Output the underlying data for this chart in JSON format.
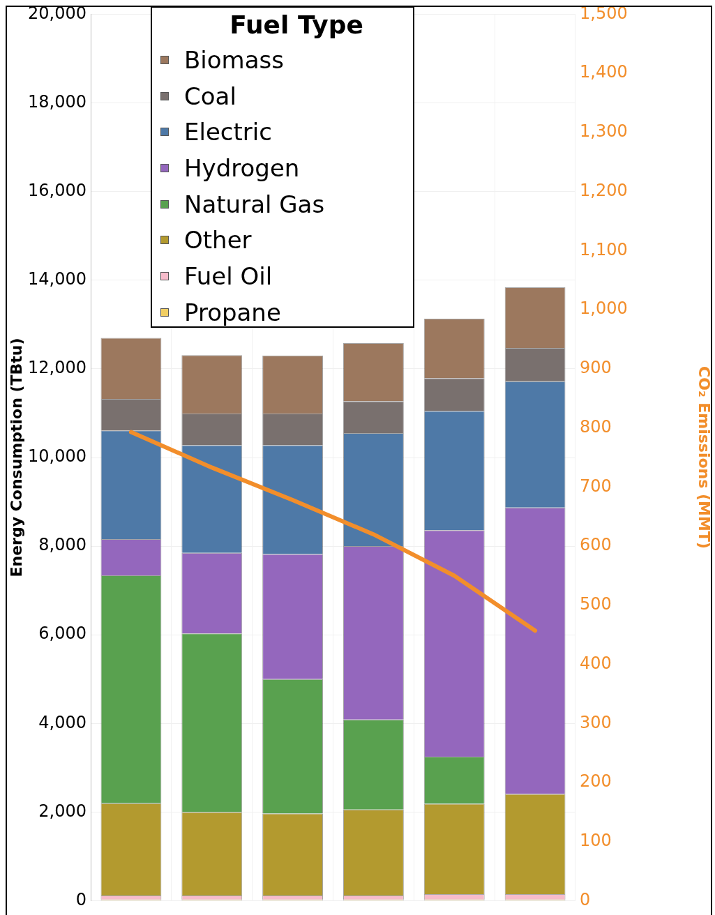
{
  "chart_data": {
    "type": "bar",
    "stacked": true,
    "legend_title": "Fuel Type",
    "legend": "top left",
    "grid": true,
    "ylabel": "Energy Consumption (TBtu)",
    "y2label": "CO₂ Emissions (MMT)",
    "categories": [
      null,
      null,
      null,
      null,
      null,
      null
    ],
    "ylim": [
      0,
      20000
    ],
    "yticks": [
      0,
      {
        "value": 2000,
        "label": "2,000"
      },
      {
        "value": 4000,
        "label": "4,000"
      },
      {
        "value": 6000,
        "label": "6,000"
      },
      {
        "value": 8000,
        "label": "8,000"
      },
      {
        "value": 10000,
        "label": "10,000"
      },
      {
        "value": 12000,
        "label": "12,000"
      },
      {
        "value": 14000,
        "label": "14,000"
      },
      {
        "value": 16000,
        "label": "16,000"
      },
      {
        "value": 18000,
        "label": "18,000"
      },
      {
        "value": 20000,
        "label": "20,000"
      }
    ],
    "y2lim": [
      0,
      1500
    ],
    "y2ticks": [
      0,
      100,
      200,
      300,
      400,
      500,
      600,
      700,
      800,
      900,
      {
        "value": 1000,
        "label": "1,000"
      },
      {
        "value": 1100,
        "label": "1,100"
      },
      {
        "value": 1200,
        "label": "1,200"
      },
      {
        "value": 1300,
        "label": "1,300"
      },
      {
        "value": 1400,
        "label": "1,400"
      },
      {
        "value": 1500,
        "label": "1,500"
      }
    ],
    "series": [
      {
        "name": "Propane",
        "color": "#f1ce63",
        "values": [
          30,
          30,
          30,
          30,
          30,
          30
        ]
      },
      {
        "name": "Fuel Oil",
        "color": "#f7bccb",
        "values": [
          90,
          90,
          90,
          90,
          120,
          120
        ]
      },
      {
        "name": "Other",
        "color": "#b39a2f",
        "values": [
          2080,
          1880,
          1850,
          1940,
          2040,
          2260
        ]
      },
      {
        "name": "Natural Gas",
        "color": "#59a14f",
        "values": [
          5140,
          4030,
          3030,
          2030,
          1060,
          0
        ]
      },
      {
        "name": "Hydrogen",
        "color": "#9467bd",
        "values": [
          820,
          1820,
          2820,
          3910,
          5110,
          6460
        ]
      },
      {
        "name": "Electric",
        "color": "#4e79a7",
        "values": [
          2450,
          2430,
          2460,
          2550,
          2690,
          2850
        ]
      },
      {
        "name": "Coal",
        "color": "#79706e",
        "values": [
          710,
          710,
          710,
          720,
          740,
          750
        ]
      },
      {
        "name": "Biomass",
        "color": "#9c785e",
        "values": [
          1380,
          1320,
          1310,
          1310,
          1340,
          1370
        ]
      },
      {
        "type": "line",
        "axis": "y2",
        "color": "#f28e2b",
        "values": [
          793,
          733,
          678,
          620,
          550,
          457
        ]
      }
    ]
  }
}
